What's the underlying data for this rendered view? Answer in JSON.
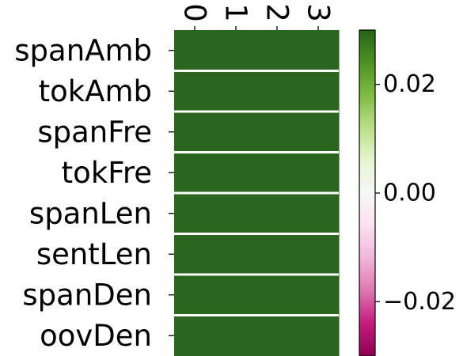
{
  "chart_data": {
    "type": "heatmap",
    "title": "",
    "xlabel": "",
    "ylabel": "",
    "x_categories": [
      "0",
      "1",
      "2",
      "3"
    ],
    "y_categories": [
      "spanAmb",
      "tokAmb",
      "spanFre",
      "tokFre",
      "spanLen",
      "sentLen",
      "spanDen",
      "oovDen"
    ],
    "values": [
      [
        0.03,
        0.03,
        0.03,
        0.03
      ],
      [
        0.03,
        0.03,
        0.03,
        0.03
      ],
      [
        0.03,
        0.03,
        0.03,
        0.03
      ],
      [
        0.03,
        0.03,
        0.03,
        0.03
      ],
      [
        0.03,
        0.03,
        0.03,
        0.03
      ],
      [
        0.03,
        0.03,
        0.03,
        0.03
      ],
      [
        0.03,
        0.03,
        0.03,
        0.03
      ],
      [
        0.03,
        0.03,
        0.03,
        0.03
      ]
    ],
    "colormap": "PiYG",
    "color_range": [
      -0.03,
      0.03
    ],
    "colorbar": {
      "ticks": [
        0.02,
        0.0,
        -0.02
      ],
      "tick_labels": [
        "0.02",
        "0.00",
        "−0.02"
      ]
    },
    "cell_color": "#2a661e",
    "row_separator_color": "#ffffff",
    "grid": false,
    "legend": "colorbar-right"
  }
}
